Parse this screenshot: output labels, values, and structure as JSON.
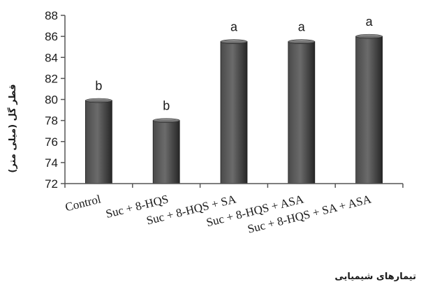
{
  "chart_data": {
    "type": "bar",
    "categories": [
      "Control",
      "Suc + 8-HQS",
      "Suc + 8-HQS + SA",
      "Suc + 8-HQS + ASA",
      "Suc + 8-HQS + SA + ASA"
    ],
    "values": [
      79.9,
      78.0,
      85.5,
      85.5,
      86.0
    ],
    "significance_letters": [
      "b",
      "b",
      "a",
      "a",
      "a"
    ],
    "ylim": [
      72,
      88
    ],
    "yticks": [
      72,
      74,
      76,
      78,
      80,
      82,
      84,
      86,
      88
    ],
    "ylabel": "قطر گل (میلی متر)",
    "xlabel": "تیمارهای شیمیایی",
    "grid": false,
    "legend": "none",
    "bar_color": "#3a3a3a"
  }
}
